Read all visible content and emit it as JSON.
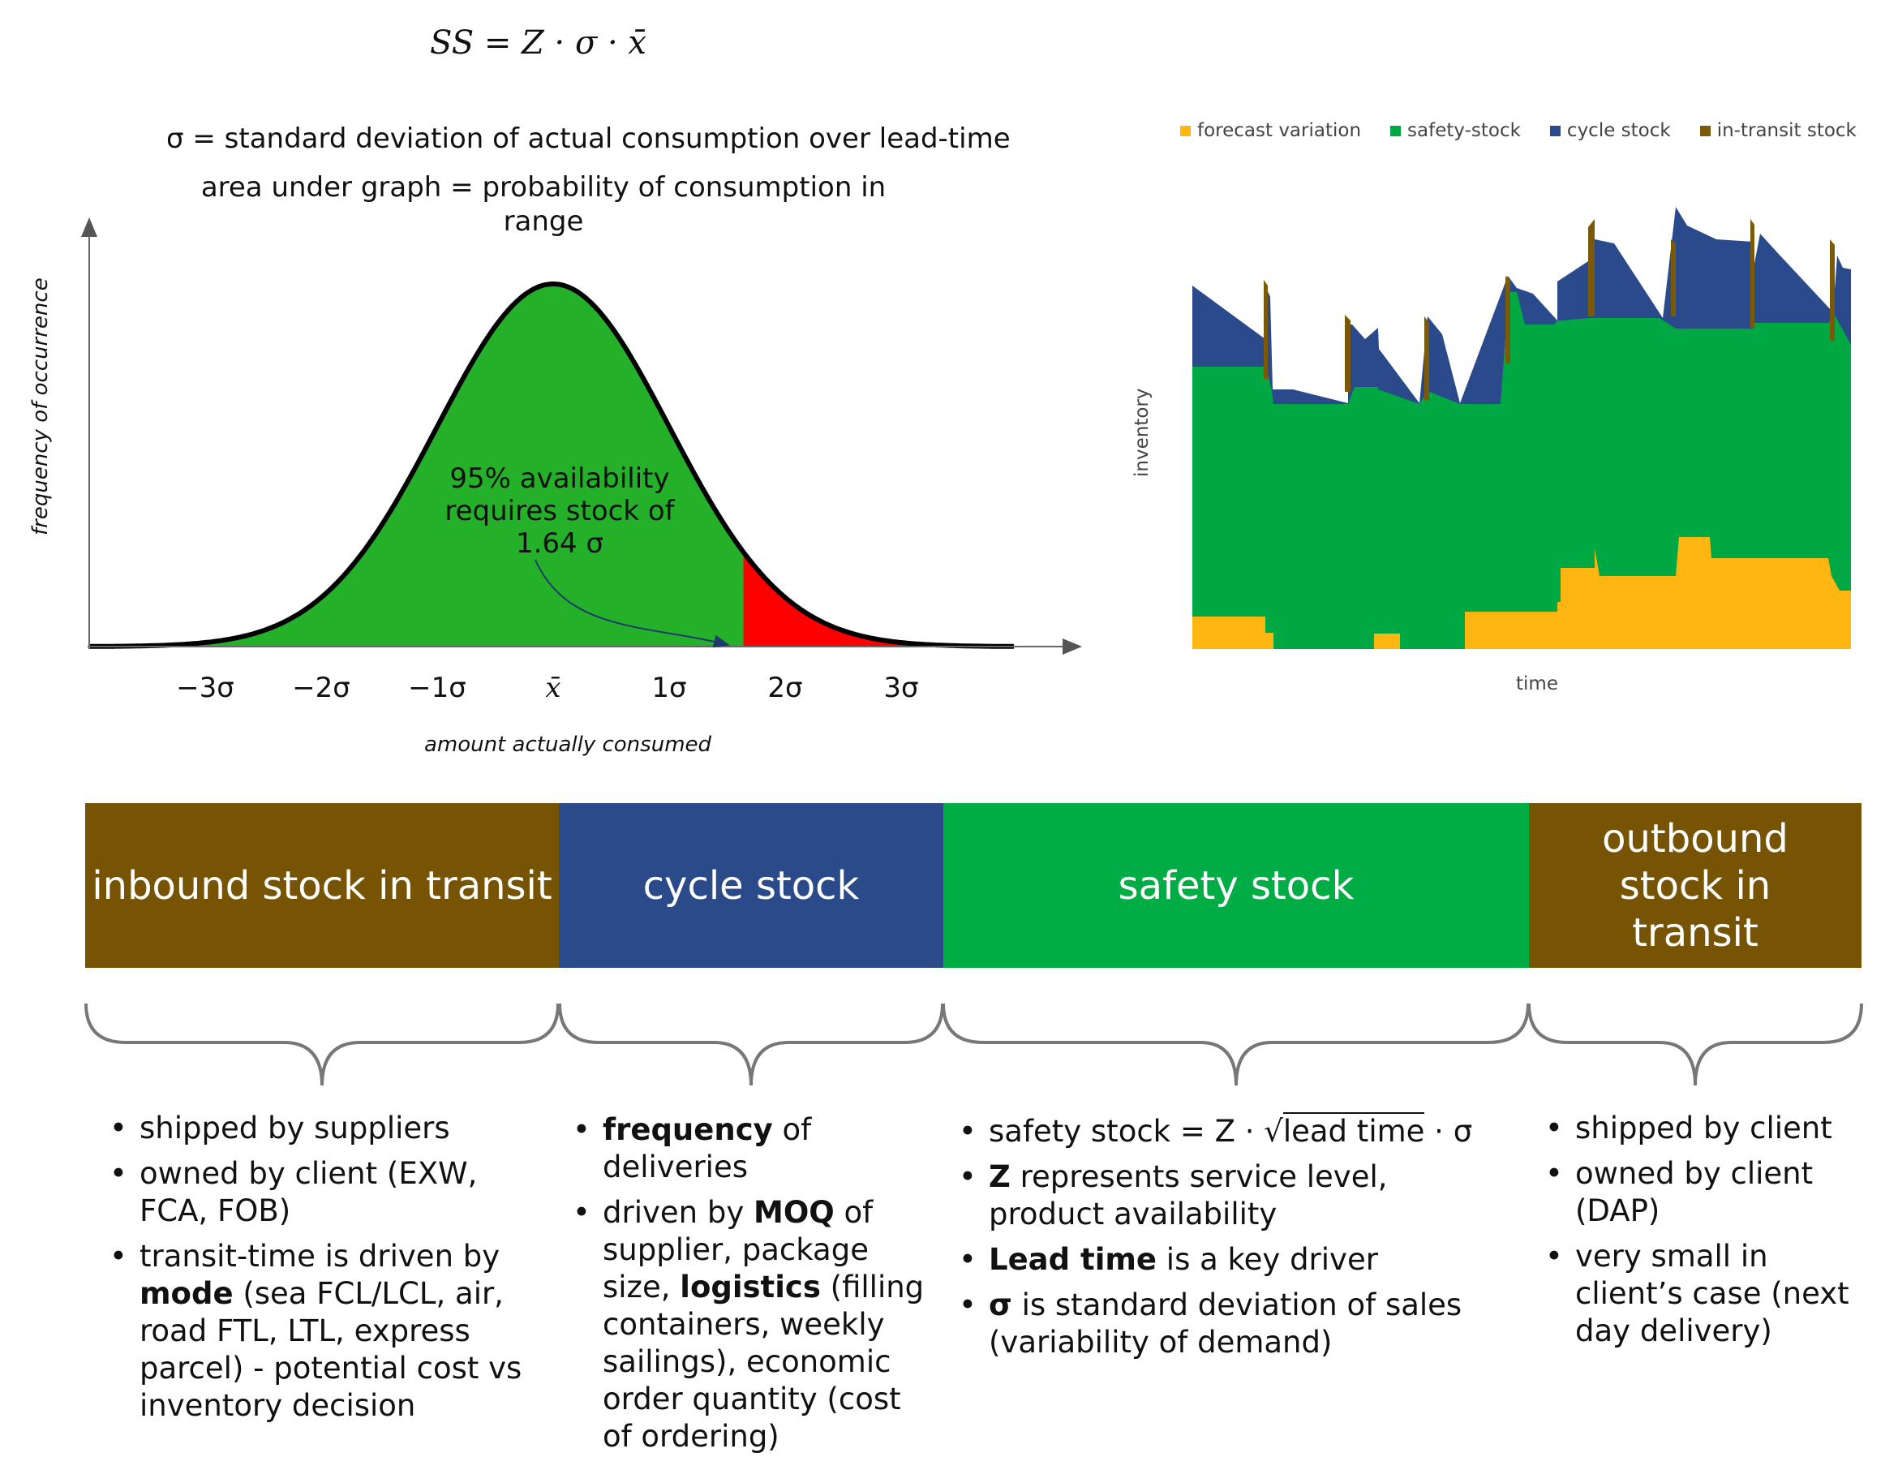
{
  "formula_ss": "SS = Z · σ · x̄",
  "sigma_def": "σ = standard deviation of actual consumption over lead-time",
  "area_def_line1": "area under graph = probability of consumption in",
  "area_def_line2": "range",
  "bell": {
    "y_axis_label": "frequency of occurrence",
    "x_axis_label": "amount actually consumed",
    "ticks": [
      "−3σ",
      "−2σ",
      "−1σ",
      "x̄",
      "1σ",
      "2σ",
      "3σ"
    ],
    "annotation": [
      "95% availability",
      "requires stock of",
      "1.64 σ"
    ],
    "colors": {
      "body": "#24b028",
      "tail": "#ff0000",
      "curve": "#000000"
    }
  },
  "stock_chart": {
    "legend": [
      {
        "label": "forecast variation",
        "color": "#ffb611"
      },
      {
        "label": "safety-stock",
        "color": "#00a843"
      },
      {
        "label": "cycle stock",
        "color": "#2b4a8c"
      },
      {
        "label": "in-transit stock",
        "color": "#7a5a08"
      }
    ],
    "y_axis_label": "inventory",
    "x_axis_label": "time"
  },
  "bars": [
    {
      "label": "inbound stock in transit",
      "color": "#765404"
    },
    {
      "label": "cycle stock",
      "color": "#2b4a8a"
    },
    {
      "label": "safety stock",
      "color": "#00ad45"
    },
    {
      "label": "outbound stock in transit",
      "color": "#765404"
    }
  ],
  "col1": {
    "b1": "shipped by suppliers",
    "b2": "owned by client (EXW, FCA, FOB)",
    "b3_pre": "transit-time is driven by ",
    "b3_bold": "mode",
    "b3_post": " (sea FCL/LCL, air, road FTL, LTL, express parcel) - potential cost vs inventory decision"
  },
  "col2": {
    "b1_bold": "frequency",
    "b1_post": " of deliveries",
    "b2_pre": "driven by ",
    "b2_bold1": "MOQ",
    "b2_mid": " of supplier, package size, ",
    "b2_bold2": "logistics",
    "b2_post": " (filling containers, weekly sailings), economic order quantity (cost of ordering)"
  },
  "col3": {
    "b1_pre": "safety stock = Z · ",
    "b1_rad": "lead time",
    "b1_post": " · σ",
    "b2_bold": "Z",
    "b2_post": " represents service level, product availability",
    "b3_bold": "Lead time",
    "b3_post": " is a key driver",
    "b4_bold": "σ",
    "b4_post": " is standard deviation of sales (variability of demand)"
  },
  "col4": {
    "b1": "shipped by client",
    "b2": "owned by client (DAP)",
    "b3": "very small in client’s case (next day delivery)"
  }
}
